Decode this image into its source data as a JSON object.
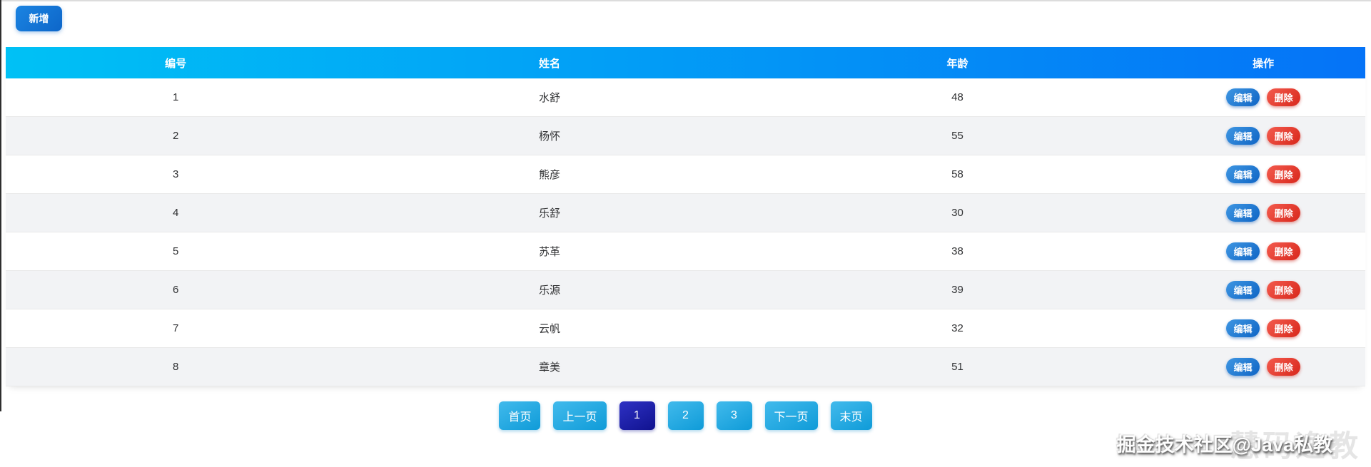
{
  "toolbar": {
    "add_button_label": "新增"
  },
  "table": {
    "columns": [
      {
        "key": "id",
        "label": "编号"
      },
      {
        "key": "name",
        "label": "姓名"
      },
      {
        "key": "age",
        "label": "年龄"
      },
      {
        "key": "ops",
        "label": "操作"
      }
    ],
    "rows": [
      {
        "id": "1",
        "name": "水舒",
        "age": "48"
      },
      {
        "id": "2",
        "name": "杨怀",
        "age": "55"
      },
      {
        "id": "3",
        "name": "熊彦",
        "age": "58"
      },
      {
        "id": "4",
        "name": "乐舒",
        "age": "30"
      },
      {
        "id": "5",
        "name": "苏革",
        "age": "38"
      },
      {
        "id": "6",
        "name": "乐源",
        "age": "39"
      },
      {
        "id": "7",
        "name": "云帆",
        "age": "32"
      },
      {
        "id": "8",
        "name": "章美",
        "age": "51"
      }
    ],
    "row_actions": {
      "edit_label": "编辑",
      "delete_label": "删除"
    }
  },
  "pagination": {
    "current_page": "1",
    "items": [
      {
        "label": "首页",
        "type": "nav",
        "active": false
      },
      {
        "label": "上一页",
        "type": "nav",
        "active": false
      },
      {
        "label": "1",
        "type": "page",
        "active": true
      },
      {
        "label": "2",
        "type": "page",
        "active": false
      },
      {
        "label": "3",
        "type": "page",
        "active": false
      },
      {
        "label": "下一页",
        "type": "nav",
        "active": false
      },
      {
        "label": "末页",
        "type": "nav",
        "active": false
      }
    ]
  },
  "watermark": {
    "main_text": "掘金技术社区@Java私教",
    "ghost_text": "慧码逸教"
  },
  "colors": {
    "header_gradient_start": "#00c1f5",
    "header_gradient_end": "#0573f7",
    "add_button_blue": "#0d66c9",
    "edit_button_blue": "#0f65c5",
    "delete_button_red": "#d8271b",
    "pagination_blue": "#0f9bd8",
    "pagination_active": "#10128f",
    "row_stripe": "#f2f3f5",
    "row_text": "#303133"
  }
}
